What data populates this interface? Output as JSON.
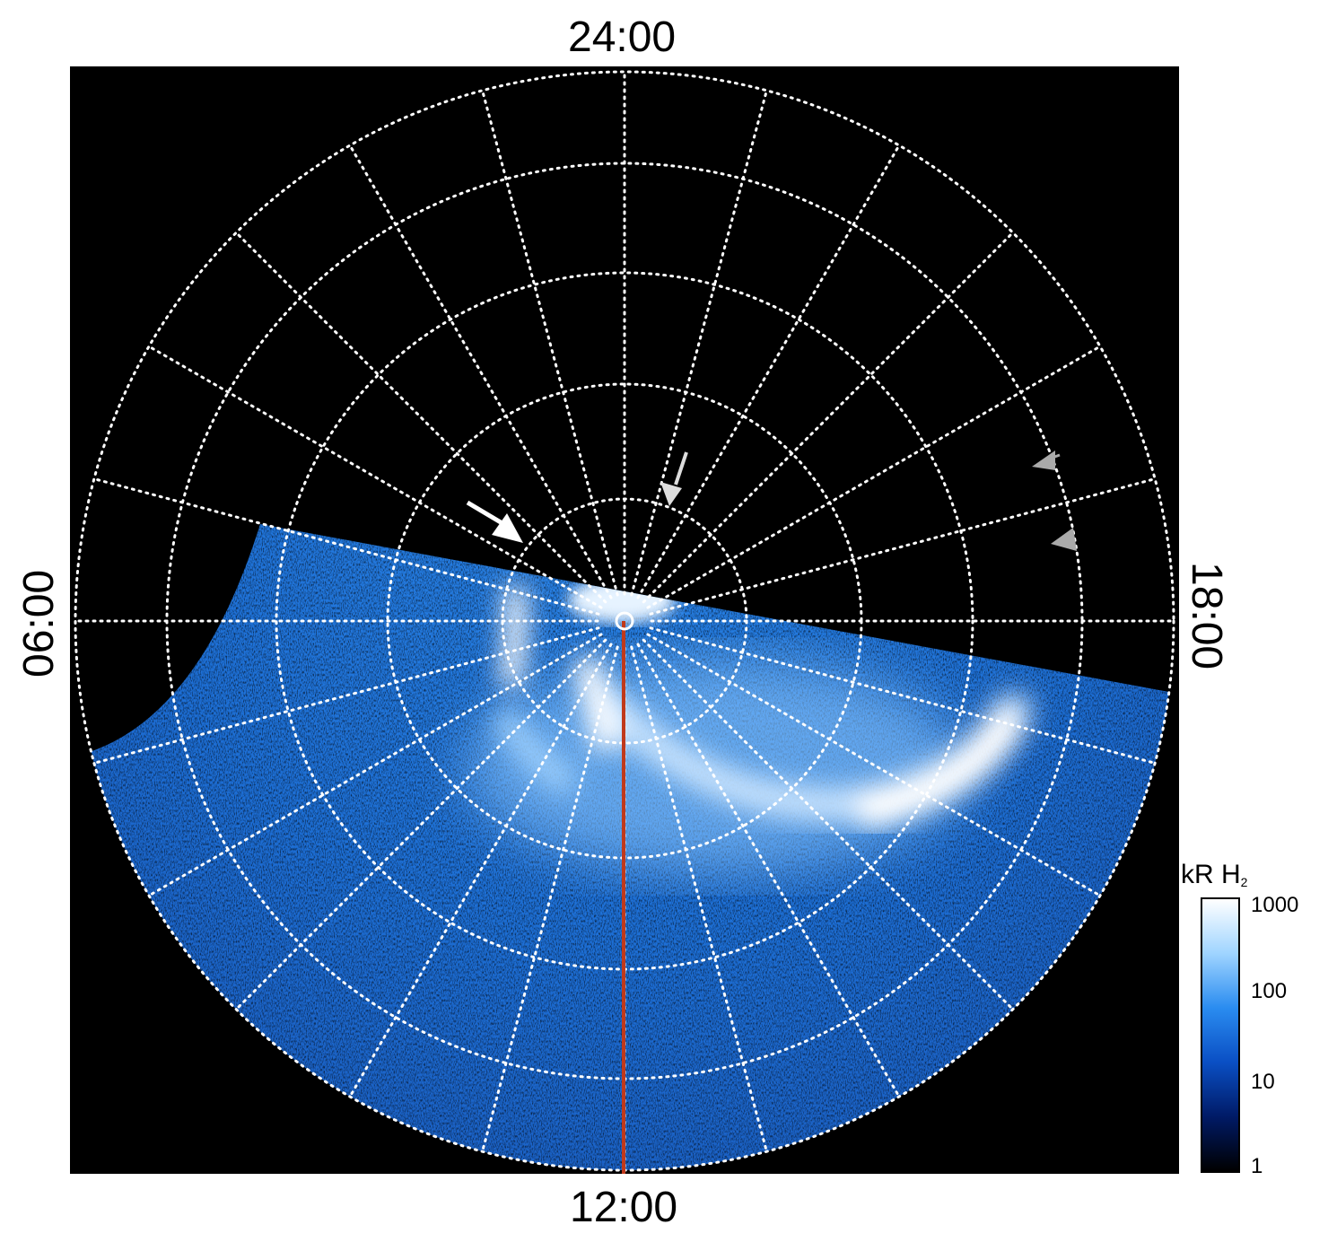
{
  "local_time_labels": {
    "top": "24:00",
    "bottom": "12:00",
    "left": "06:00",
    "right": "18:00"
  },
  "colorbar": {
    "unit_main": "kR H",
    "unit_sub": "2",
    "ticks": [
      "1000",
      "100",
      "10",
      "1"
    ],
    "scale": "log",
    "colors": [
      "#000000",
      "#001a66",
      "#0a4fc4",
      "#2a8cf0",
      "#9fd4ff",
      "#ffffff"
    ]
  },
  "map": {
    "background": "#000000",
    "grid_color": "#ffffff",
    "meridian_line_color": "#c0391b",
    "arrow_colors": [
      "#ffffff",
      "#dddddd",
      "#aaaaaa"
    ]
  }
}
